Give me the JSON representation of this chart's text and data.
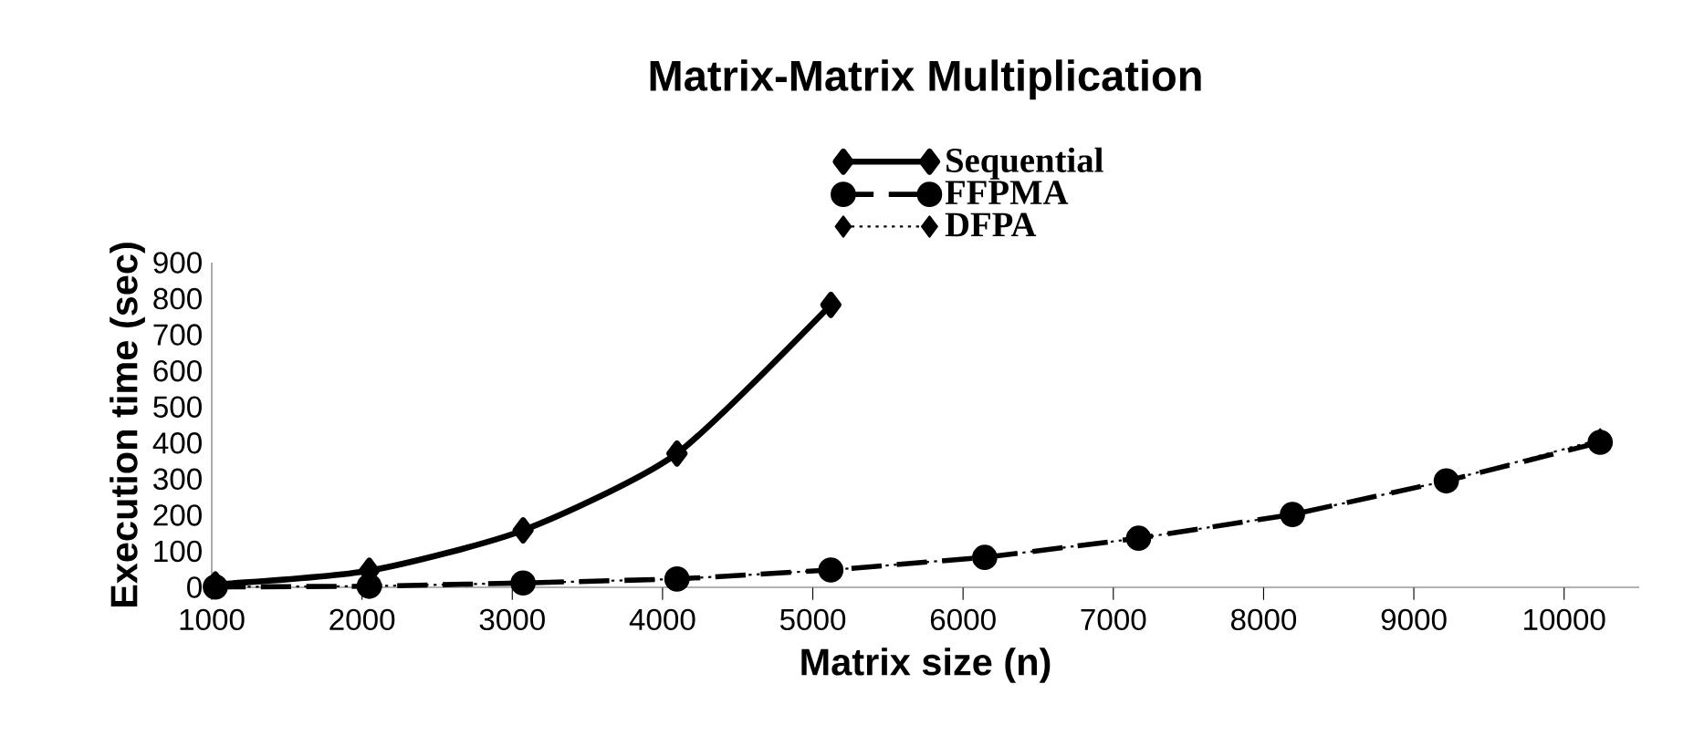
{
  "chart_data": {
    "type": "line",
    "title": "Matrix-Matrix Multiplication",
    "xlabel": "Matrix size (n)",
    "ylabel": "Execution time (sec)",
    "xlim": [
      1000,
      10500
    ],
    "xticks": [
      1000,
      2000,
      3000,
      4000,
      5000,
      6000,
      7000,
      8000,
      9000,
      10000
    ],
    "ylim": [
      0,
      900
    ],
    "yticks": [
      0,
      100,
      200,
      300,
      400,
      500,
      600,
      700,
      800,
      900
    ],
    "grid": false,
    "legend": "top",
    "series": [
      {
        "name": "Sequential",
        "color": "#000000",
        "marker": "diamond",
        "line_style": "solid",
        "x": [
          1024,
          2048,
          3072,
          4096,
          5120
        ],
        "values": [
          8,
          46,
          158,
          371,
          783
        ]
      },
      {
        "name": "FFPMA",
        "color": "#000000",
        "marker": "circle",
        "line_style": "dashed",
        "x": [
          1024,
          2048,
          3072,
          4096,
          5120,
          6144,
          7168,
          8192,
          9216,
          10240
        ],
        "values": [
          1,
          3,
          12,
          23,
          48,
          83,
          136,
          202,
          295,
          402
        ]
      },
      {
        "name": "DFPA",
        "color": "#000000",
        "marker": "diamond",
        "line_style": "dotted",
        "x": [
          1024,
          2048,
          3072,
          4096,
          5120,
          6144,
          7168,
          8192,
          9216,
          10240
        ],
        "values": [
          1,
          3,
          12,
          23,
          48,
          83,
          136,
          202,
          295,
          410
        ]
      }
    ]
  }
}
